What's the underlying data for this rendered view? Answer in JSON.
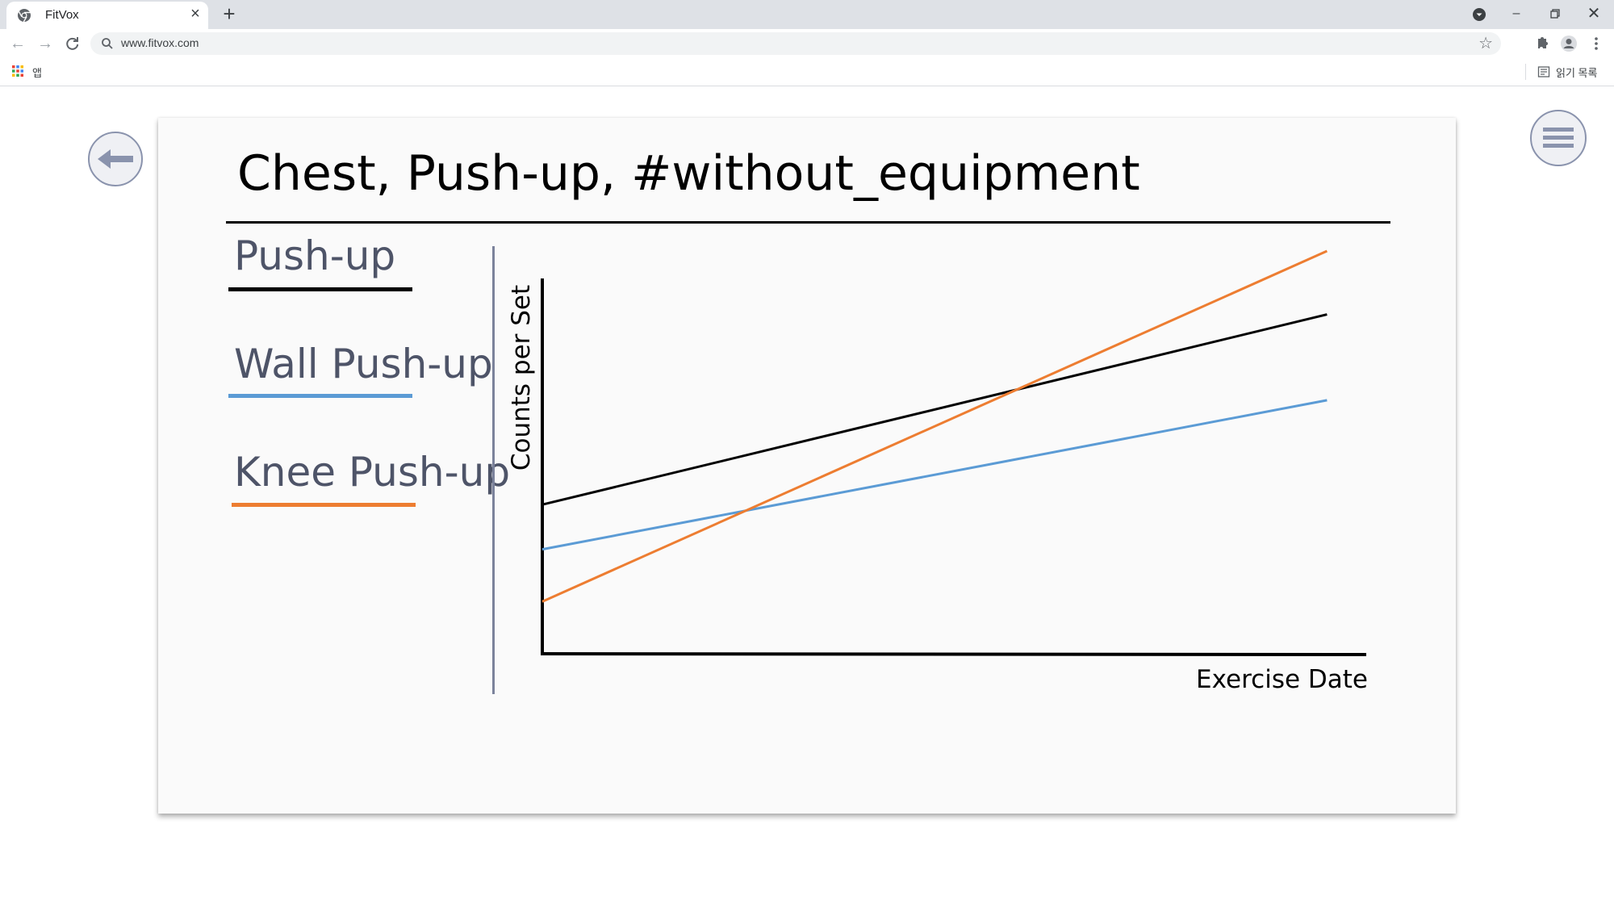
{
  "browser": {
    "tab": {
      "title": "FitVox"
    },
    "address_bar": {
      "url": "www.fitvox.com"
    },
    "bookmarks_bar": {
      "apps_label": "앱",
      "reading_list_label": "읽기 목록"
    }
  },
  "page": {
    "title": "Chest, Push-up, #without_equipment",
    "exercises": [
      {
        "label": "Push-up",
        "color": "#000000"
      },
      {
        "label": "Wall Push-up",
        "color": "#5b9bd5"
      },
      {
        "label": "Knee Push-up",
        "color": "#ed7d31"
      }
    ],
    "icons": {
      "back": "left-arrow-icon",
      "menu": "hamburger-menu-icon"
    }
  },
  "chart_data": {
    "type": "line",
    "xlabel": "Exercise Date",
    "ylabel": "Counts per Set",
    "grid": false,
    "legend": "left",
    "x": [
      0,
      1
    ],
    "series": [
      {
        "name": "Push-up",
        "color": "#000000",
        "values": [
          40,
          91
        ]
      },
      {
        "name": "Wall Push-up",
        "color": "#5b9bd5",
        "values": [
          28,
          68
        ]
      },
      {
        "name": "Knee Push-up",
        "color": "#ed7d31",
        "values": [
          14,
          108
        ]
      }
    ],
    "xlim": [
      0,
      1.05
    ],
    "ylim": [
      0,
      100
    ]
  }
}
